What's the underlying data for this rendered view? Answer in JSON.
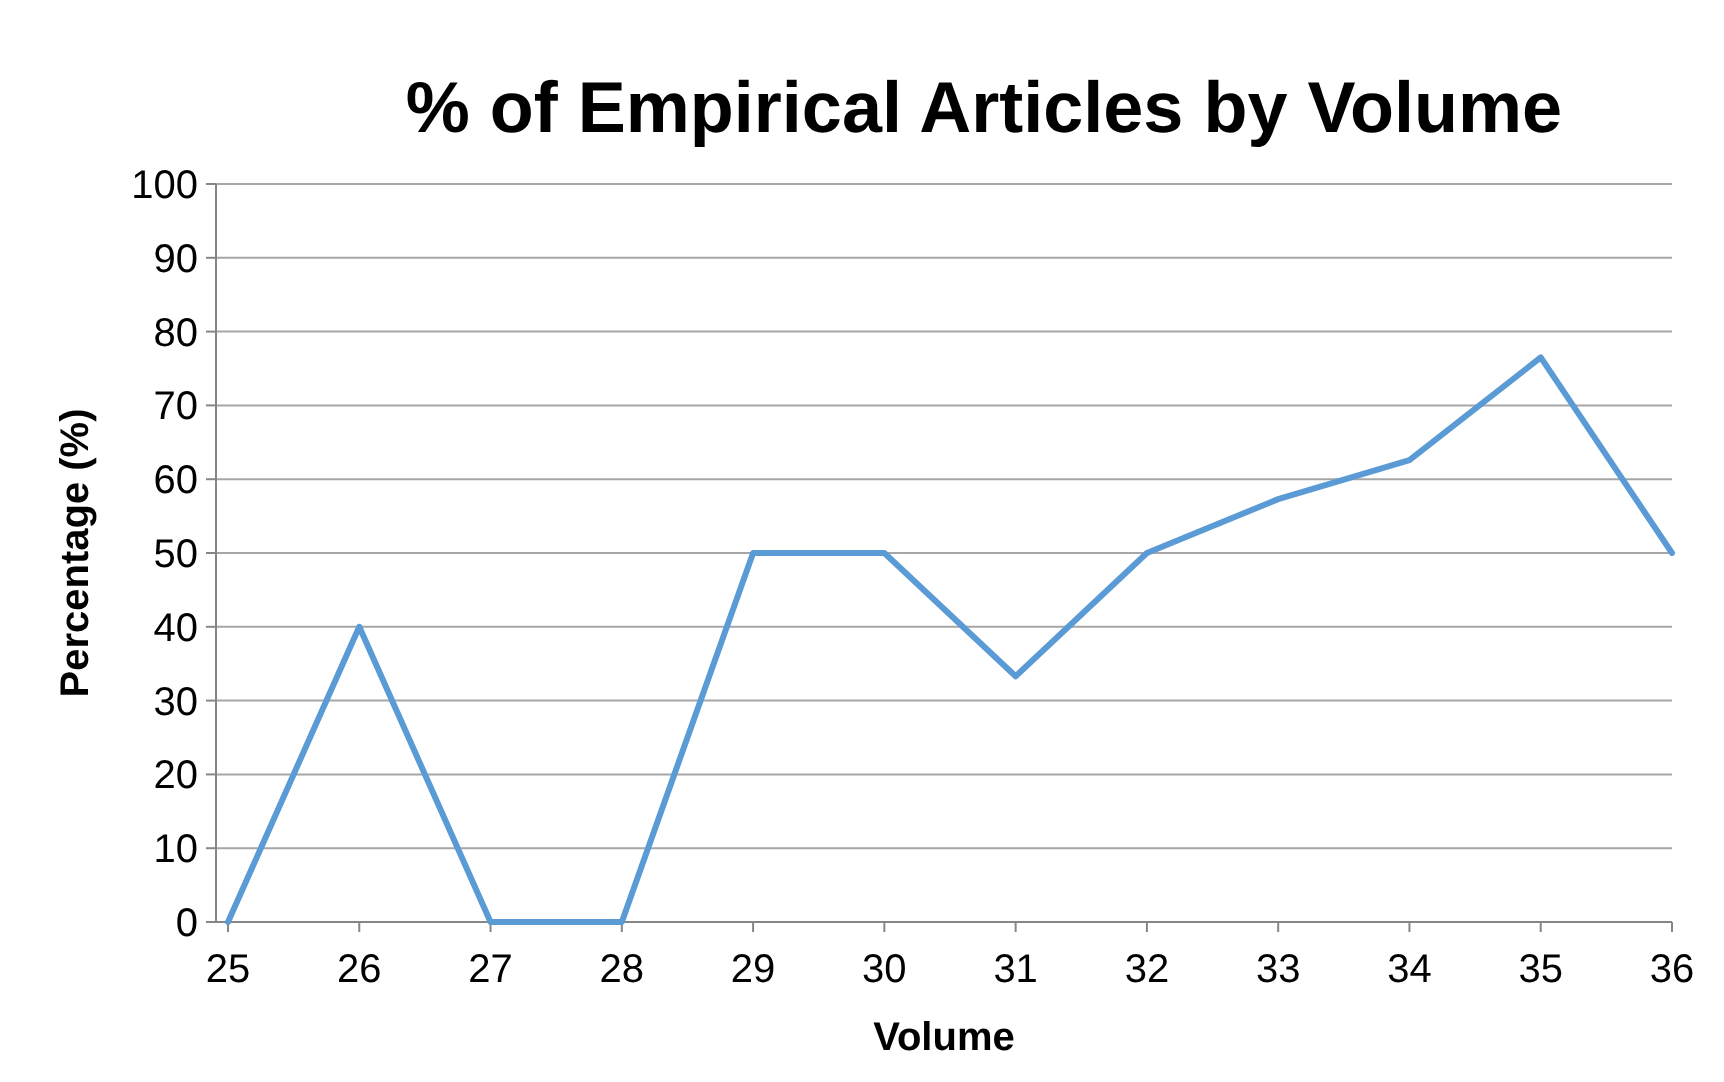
{
  "chart_data": {
    "type": "line",
    "title": "% of Empirical Articles by Volume",
    "xlabel": "Volume",
    "ylabel": "Percentage (%)",
    "categories": [
      "25",
      "26",
      "27",
      "28",
      "29",
      "30",
      "31",
      "32",
      "33",
      "34",
      "35",
      "36"
    ],
    "series": [
      {
        "color": "#5b9bd5",
        "values": [
          0,
          40,
          0,
          0,
          50,
          50,
          33.3,
          50,
          57.3,
          62.6,
          76.5,
          50
        ]
      }
    ],
    "ylim": [
      0,
      100
    ],
    "yticks": [
      0,
      10,
      20,
      30,
      40,
      50,
      60,
      70,
      80,
      90,
      100
    ],
    "grid": "y",
    "marker": "none",
    "line_style": "solid"
  }
}
